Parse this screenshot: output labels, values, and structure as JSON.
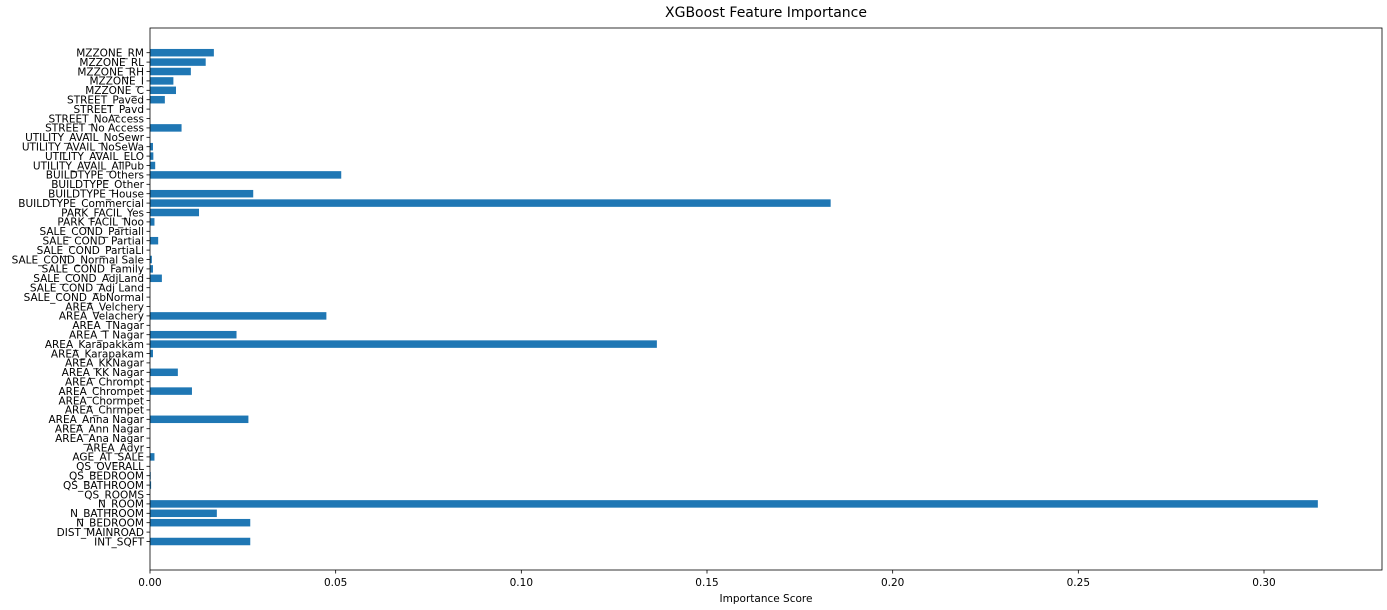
{
  "chart_data": {
    "type": "bar",
    "orientation": "horizontal",
    "title": "XGBoost Feature Importance",
    "xlabel": "Importance Score",
    "ylabel": "",
    "xlim": [
      0,
      0.33
    ],
    "xticks": [
      0.0,
      0.05,
      0.1,
      0.15,
      0.2,
      0.25,
      0.3
    ],
    "xtick_labels": [
      "0.00",
      "0.05",
      "0.10",
      "0.15",
      "0.20",
      "0.25",
      "0.30"
    ],
    "grid": false,
    "bar_color": "#1f77b4",
    "categories": [
      "INT_SQFT",
      "DIST_MAINROAD",
      "N_BEDROOM",
      "N_BATHROOM",
      "N_ROOM",
      "QS_ROOMS",
      "QS_BATHROOM",
      "QS_BEDROOM",
      "QS_OVERALL",
      "AGE_AT_SALE",
      "AREA_Adyr",
      "AREA_Ana Nagar",
      "AREA_Ann Nagar",
      "AREA_Anna Nagar",
      "AREA_Chrmpet",
      "AREA_Chormpet",
      "AREA_Chrompet",
      "AREA_Chrompt",
      "AREA_KK Nagar",
      "AREA_KKNagar",
      "AREA_Karapakam",
      "AREA_Karapakkam",
      "AREA_T Nagar",
      "AREA_TNagar",
      "AREA_Velachery",
      "AREA_Velchery",
      "SALE_COND_AbNormal",
      "SALE_COND_Adj Land",
      "SALE_COND_AdjLand",
      "SALE_COND_Family",
      "SALE_COND_Normal Sale",
      "SALE_COND_PartiaLl",
      "SALE_COND_Partial",
      "SALE_COND_Partiall",
      "PARK_FACIL_Noo",
      "PARK_FACIL_Yes",
      "BUILDTYPE_Commercial",
      "BUILDTYPE_House",
      "BUILDTYPE_Other",
      "BUILDTYPE_Others",
      "UTILITY_AVAIL_AllPub",
      "UTILITY_AVAIL_ELO",
      "UTILITY_AVAIL_NoSeWa",
      "UTILITY_AVAIL_NoSewr",
      "STREET_No Access",
      "STREET_NoAccess",
      "STREET_Pavd",
      "STREET_Paved",
      "MZZONE_C",
      "MZZONE_I",
      "MZZONE_RH",
      "MZZONE_RL",
      "MZZONE_RM"
    ],
    "values": [
      0.027,
      0.0,
      0.027,
      0.018,
      0.3145,
      0.0,
      0.0003,
      0.0002,
      0.0,
      0.0012,
      0.0,
      0.0,
      0.0,
      0.0265,
      0.0,
      0.0,
      0.0113,
      0.0,
      0.0075,
      0.0,
      0.0008,
      0.1365,
      0.0233,
      0.0,
      0.0475,
      0.0,
      0.0,
      0.0,
      0.0032,
      0.0008,
      0.0005,
      0.0,
      0.0022,
      0.0,
      0.0012,
      0.0132,
      0.1833,
      0.0278,
      0.0,
      0.0515,
      0.0014,
      0.0009,
      0.0008,
      0.0,
      0.0085,
      0.0,
      0.0,
      0.004,
      0.007,
      0.0063,
      0.011,
      0.015,
      0.0172
    ]
  }
}
